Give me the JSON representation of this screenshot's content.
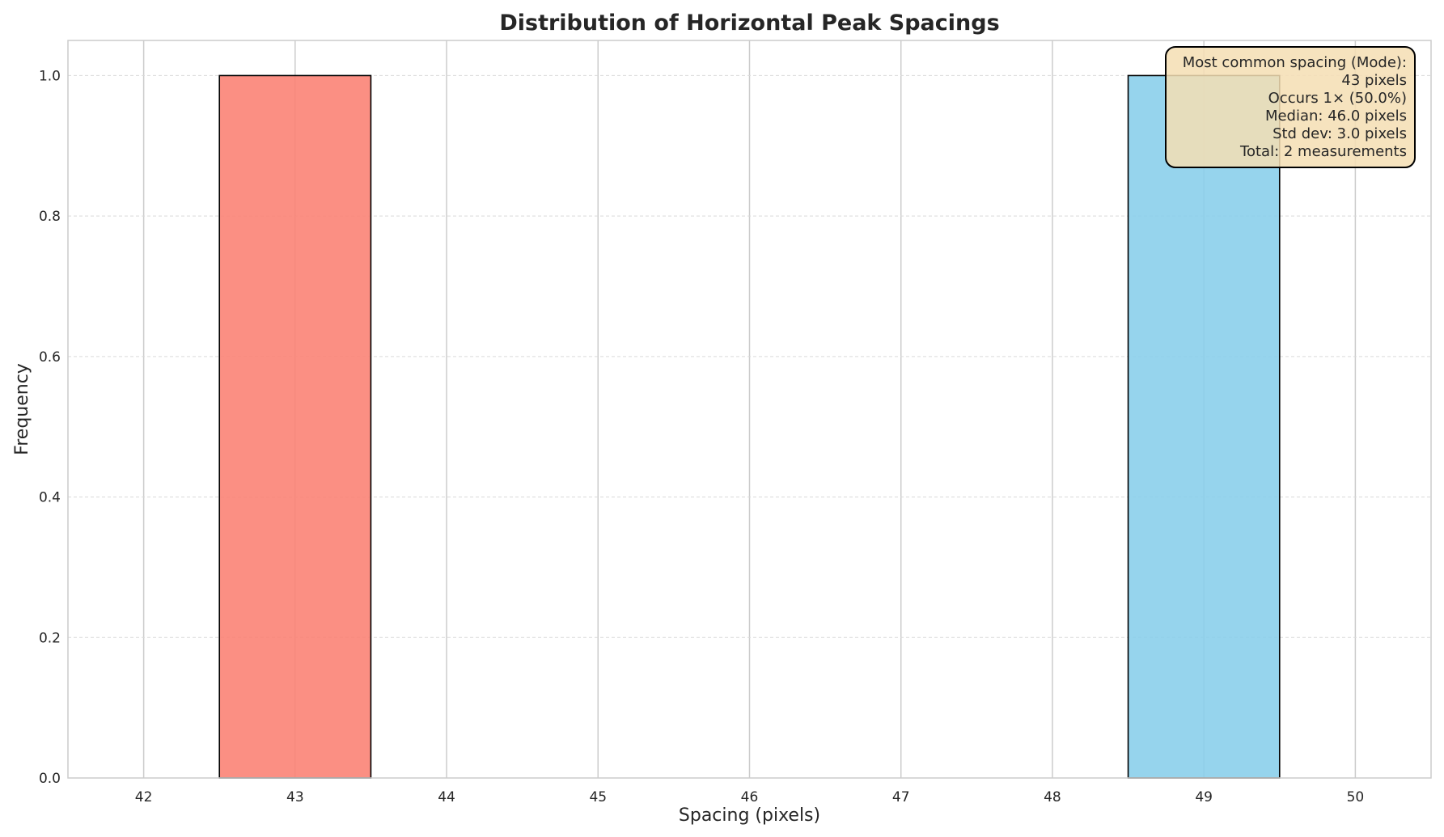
{
  "chart_data": {
    "type": "bar",
    "title": "Distribution of Horizontal Peak Spacings",
    "xlabel": "Spacing (pixels)",
    "ylabel": "Frequency",
    "xlim": [
      41.5,
      50.5
    ],
    "ylim": [
      0,
      1.05
    ],
    "x_ticks": [
      "42",
      "43",
      "44",
      "45",
      "46",
      "47",
      "48",
      "49",
      "50"
    ],
    "y_ticks": [
      "0.0",
      "0.2",
      "0.4",
      "0.6",
      "0.8",
      "1.0"
    ],
    "bar_width": 1,
    "grid": true,
    "bars": [
      {
        "x": 43,
        "value": 1,
        "color": "#fa8072"
      },
      {
        "x": 49,
        "value": 1,
        "color": "#87ceeb"
      }
    ],
    "stats_box": {
      "placement": "top-right",
      "background": "#f5deb3",
      "lines": [
        "Most common spacing (Mode):",
        "43 pixels",
        "Occurs 1× (50.0%)",
        "Median: 46.0 pixels",
        "Std dev: 3.0 pixels",
        "Total: 2 measurements"
      ]
    }
  }
}
